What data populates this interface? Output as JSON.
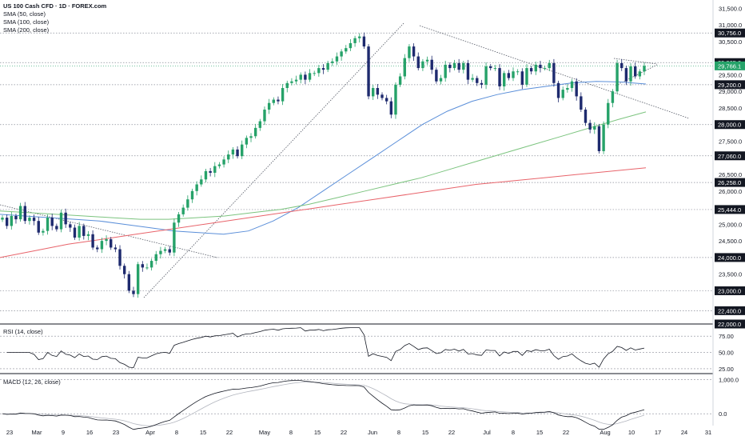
{
  "header": {
    "title": "US 100 Cash CFD · 1D · FOREX.com",
    "indicators": [
      "SMA (50, close)",
      "SMA (100, close)",
      "SMA (200, close)"
    ]
  },
  "rsi_label": "RSI (14, close)",
  "macd_label": "MACD (12, 26, close)",
  "colors": {
    "up": "#26a269",
    "down": "#1e2a6e",
    "sma50": "#5b8fd9",
    "sma100": "#7cc47f",
    "sma200": "#e8646b",
    "rsi": "#131722",
    "macd": "#131722",
    "signal": "#b2b5be"
  },
  "chart_data": [
    {
      "type": "candlestick",
      "title": "US 100 Cash CFD · 1D · FOREX.com",
      "x_tick_labels": [
        "23",
        "Mar",
        "9",
        "16",
        "23",
        "Apr",
        "8",
        "15",
        "22",
        "May",
        "8",
        "15",
        "22",
        "Jun",
        "8",
        "15",
        "22",
        "Jul",
        "8",
        "15",
        "22",
        "Aug",
        "10",
        "17",
        "24",
        "31"
      ],
      "y_axis_labels": [
        "31,500.0",
        "31,000.0",
        "30,500.0",
        "29,500.0",
        "29,000.0",
        "28,500.0",
        "27,500.0",
        "26,500.0",
        "26,000.0",
        "25,000.0",
        "24,500.0",
        "23,500.0"
      ],
      "price_levels": [
        "30,756.0",
        "29,865.0",
        "29,200.0",
        "28,000.0",
        "27,060.0",
        "26,258.0",
        "25,444.0",
        "24,000.0",
        "23,000.0",
        "22,400.0",
        "22,000.0"
      ],
      "last_price": "29,766.1",
      "ylim": [
        22000,
        31700
      ],
      "closes": [
        25200,
        24950,
        25250,
        25150,
        25550,
        25100,
        25200,
        25100,
        24750,
        24800,
        25200,
        24950,
        24850,
        25350,
        25000,
        24900,
        24600,
        24950,
        24650,
        24700,
        24300,
        24250,
        24500,
        24550,
        24300,
        24250,
        23750,
        23500,
        23000,
        22900,
        23800,
        23700,
        23700,
        23900,
        24100,
        24200,
        24250,
        24150,
        25050,
        25300,
        25500,
        25750,
        26000,
        26200,
        26350,
        26600,
        26550,
        26750,
        26800,
        26950,
        27100,
        27250,
        27050,
        27400,
        27600,
        27650,
        27900,
        28100,
        28450,
        28650,
        28750,
        28700,
        29100,
        29250,
        29300,
        29350,
        29500,
        29350,
        29550,
        29550,
        29700,
        29650,
        29850,
        29900,
        30050,
        30200,
        30300,
        30450,
        30600,
        30650,
        30350,
        28850,
        29100,
        28900,
        28800,
        28700,
        28300,
        29200,
        29450,
        30000,
        30350,
        30050,
        29700,
        29900,
        29950,
        29650,
        29300,
        29400,
        29800,
        29700,
        29850,
        29650,
        29850,
        29350,
        29400,
        29250,
        29200,
        29750,
        29700,
        29700,
        29150,
        29550,
        29400,
        29600,
        29600,
        29200,
        29700,
        29600,
        29800,
        29700,
        29700,
        29850,
        29250,
        28800,
        29050,
        29100,
        29300,
        28850,
        28450,
        28050,
        27850,
        27950,
        27200,
        28000,
        28650,
        29000,
        29850,
        29700,
        29300,
        29750,
        29450,
        29600,
        29766.1
      ],
      "series": [
        {
          "name": "SMA (50, close)",
          "start": 0,
          "values": [
            25300,
            25250,
            25200,
            25150,
            25100,
            25000,
            24900,
            24800,
            24750,
            24700,
            24800,
            25100,
            25500,
            26000,
            26500,
            27000,
            27500,
            28000,
            28400,
            28700,
            28900,
            29050,
            29150,
            29250,
            29300,
            29280,
            29220
          ]
        },
        {
          "name": "SMA (100, close)",
          "start": 0,
          "values": [
            25400,
            25350,
            25300,
            25250,
            25200,
            25150,
            25150,
            25200,
            25250,
            25350,
            25450,
            25600,
            25800,
            26000,
            26200,
            26400,
            26650,
            26900,
            27150,
            27400,
            27650,
            27900,
            28150,
            28380
          ]
        },
        {
          "name": "SMA (200, close)",
          "start": 0,
          "values": [
            24000,
            24200,
            24400,
            24550,
            24700,
            24850,
            25000,
            25150,
            25300,
            25450,
            25600,
            25750,
            25900,
            26050,
            26200,
            26300,
            26400,
            26500,
            26600,
            26700
          ]
        },
        {
          "name": "RSI (14, close)",
          "ylim": [
            20,
            90
          ],
          "ticks": [
            "75.00",
            "50.00",
            "25.00"
          ]
        },
        {
          "name": "MACD (12, 26, close)",
          "ticks": [
            "1,000.0",
            "0.0"
          ]
        }
      ]
    }
  ]
}
